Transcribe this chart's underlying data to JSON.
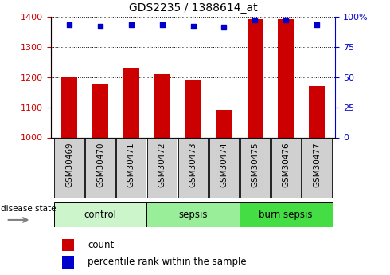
{
  "title": "GDS2235 / 1388614_at",
  "samples": [
    "GSM30469",
    "GSM30470",
    "GSM30471",
    "GSM30472",
    "GSM30473",
    "GSM30474",
    "GSM30475",
    "GSM30476",
    "GSM30477"
  ],
  "count_values": [
    1200,
    1175,
    1230,
    1210,
    1190,
    1090,
    1390,
    1390,
    1170
  ],
  "percentile_values": [
    93,
    92,
    93,
    93,
    92,
    91,
    97,
    97,
    93
  ],
  "ylim_left": [
    1000,
    1400
  ],
  "ylim_right": [
    0,
    100
  ],
  "yticks_left": [
    1000,
    1100,
    1200,
    1300,
    1400
  ],
  "yticks_right": [
    0,
    25,
    50,
    75,
    100
  ],
  "yticklabels_right": [
    "0",
    "25",
    "50",
    "75",
    "100%"
  ],
  "groups": [
    {
      "label": "control",
      "indices": [
        0,
        1,
        2
      ],
      "color": "#ccf5cc"
    },
    {
      "label": "sepsis",
      "indices": [
        3,
        4,
        5
      ],
      "color": "#99ee99"
    },
    {
      "label": "burn sepsis",
      "indices": [
        6,
        7,
        8
      ],
      "color": "#44dd44"
    }
  ],
  "bar_color": "#cc0000",
  "percentile_color": "#0000cc",
  "bar_width": 0.5,
  "tick_label_bg": "#d0d0d0",
  "legend_count_label": "count",
  "legend_percentile_label": "percentile rank within the sample",
  "disease_state_label": "disease state"
}
